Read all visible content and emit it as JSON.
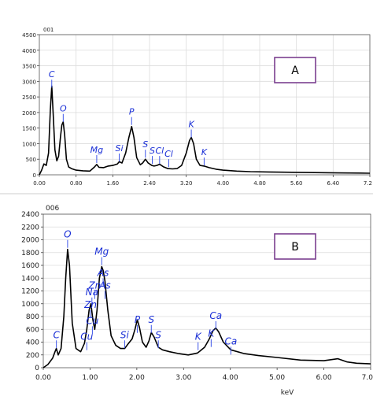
{
  "chart_data": [
    {
      "type": "line",
      "header": "001",
      "panel_label": "A",
      "xlabel": "",
      "ylabel": "",
      "xlim": [
        0,
        7.2
      ],
      "ylim": [
        0,
        4500
      ],
      "x_ticks": [
        "0.00",
        "0.80",
        "1.60",
        "2.40",
        "3.20",
        "4.00",
        "4.80",
        "5.60",
        "6.40",
        "7.2"
      ],
      "y_ticks": [
        "0",
        "500",
        "1000",
        "1500",
        "2000",
        "2500",
        "3000",
        "3500",
        "4000",
        "4500"
      ],
      "peak_labels": [
        {
          "label": "C",
          "x": 0.27,
          "y": 2750
        },
        {
          "label": "O",
          "x": 0.52,
          "y": 1650
        },
        {
          "label": "Mg",
          "x": 1.25,
          "y": 330
        },
        {
          "label": "Si",
          "x": 1.74,
          "y": 380
        },
        {
          "label": "P",
          "x": 2.01,
          "y": 1550
        },
        {
          "label": "S",
          "x": 2.31,
          "y": 500
        },
        {
          "label": "Cl",
          "x": 2.62,
          "y": 300
        },
        {
          "label": "S",
          "x": 2.46,
          "y": 300
        },
        {
          "label": "Cl",
          "x": 2.82,
          "y": 200
        },
        {
          "label": "K",
          "x": 3.31,
          "y": 1150
        },
        {
          "label": "K",
          "x": 3.59,
          "y": 250
        }
      ],
      "series": [
        {
          "x": [
            0.0,
            0.05,
            0.1,
            0.15,
            0.2,
            0.24,
            0.27,
            0.3,
            0.34,
            0.38,
            0.42,
            0.46,
            0.49,
            0.52,
            0.55,
            0.59,
            0.64,
            0.7,
            0.8,
            0.95,
            1.1,
            1.2,
            1.25,
            1.3,
            1.4,
            1.5,
            1.6,
            1.7,
            1.74,
            1.8,
            1.88,
            1.95,
            2.01,
            2.06,
            2.12,
            2.2,
            2.25,
            2.31,
            2.37,
            2.45,
            2.5,
            2.56,
            2.62,
            2.7,
            2.8,
            2.9,
            3.0,
            3.1,
            3.2,
            3.27,
            3.31,
            3.36,
            3.42,
            3.5,
            3.59,
            3.7,
            3.85,
            4.0,
            4.3,
            4.6,
            5.0,
            5.5,
            6.0,
            6.5,
            7.0,
            7.2
          ],
          "y": [
            0,
            150,
            350,
            300,
            700,
            2100,
            2850,
            2000,
            800,
            450,
            600,
            1200,
            1600,
            1700,
            1300,
            500,
            250,
            200,
            150,
            130,
            120,
            250,
            330,
            240,
            230,
            280,
            300,
            350,
            420,
            380,
            700,
            1200,
            1550,
            1200,
            550,
            320,
            380,
            500,
            380,
            300,
            280,
            300,
            340,
            260,
            200,
            190,
            200,
            300,
            700,
            1100,
            1200,
            1000,
            500,
            300,
            280,
            230,
            180,
            150,
            120,
            100,
            90,
            80,
            70,
            60,
            55,
            50
          ]
        }
      ]
    },
    {
      "type": "line",
      "header": "006",
      "panel_label": "B",
      "xlabel": "keV",
      "ylabel": "",
      "xlim": [
        0,
        7.0
      ],
      "ylim": [
        0,
        2400
      ],
      "x_ticks": [
        "0.00",
        "1.00",
        "2.00",
        "3.00",
        "4.00",
        "5.00",
        "6.00",
        "7.0"
      ],
      "y_ticks": [
        "0",
        "200",
        "400",
        "600",
        "800",
        "1000",
        "1200",
        "1400",
        "1600",
        "1800",
        "2000",
        "2200",
        "2400"
      ],
      "peak_labels": [
        {
          "label": "C",
          "x": 0.28,
          "y": 280
        },
        {
          "label": "O",
          "x": 0.52,
          "y": 1850
        },
        {
          "label": "Cu",
          "x": 0.93,
          "y": 250
        },
        {
          "label": "Cu",
          "x": 1.05,
          "y": 500
        },
        {
          "label": "Zn",
          "x": 1.01,
          "y": 750
        },
        {
          "label": "Na",
          "x": 1.04,
          "y": 950
        },
        {
          "label": "Zn",
          "x": 1.1,
          "y": 1050
        },
        {
          "label": "As",
          "x": 1.28,
          "y": 1250
        },
        {
          "label": "As",
          "x": 1.32,
          "y": 1050
        },
        {
          "label": "Mg",
          "x": 1.25,
          "y": 1580
        },
        {
          "label": "Si",
          "x": 1.74,
          "y": 280
        },
        {
          "label": "P",
          "x": 2.01,
          "y": 520
        },
        {
          "label": "S",
          "x": 2.31,
          "y": 520
        },
        {
          "label": "S",
          "x": 2.46,
          "y": 280
        },
        {
          "label": "K",
          "x": 3.31,
          "y": 250
        },
        {
          "label": "K",
          "x": 3.59,
          "y": 300
        },
        {
          "label": "Ca",
          "x": 3.69,
          "y": 580
        },
        {
          "label": "Ca",
          "x": 4.01,
          "y": 180
        }
      ],
      "series": [
        {
          "x": [
            0.0,
            0.1,
            0.2,
            0.25,
            0.28,
            0.32,
            0.38,
            0.44,
            0.48,
            0.52,
            0.56,
            0.62,
            0.7,
            0.8,
            0.88,
            0.93,
            0.98,
            1.02,
            1.06,
            1.1,
            1.15,
            1.2,
            1.25,
            1.28,
            1.32,
            1.38,
            1.45,
            1.55,
            1.65,
            1.74,
            1.8,
            1.9,
            1.96,
            2.01,
            2.06,
            2.12,
            2.2,
            2.26,
            2.31,
            2.37,
            2.46,
            2.55,
            2.7,
            2.9,
            3.1,
            3.3,
            3.45,
            3.55,
            3.63,
            3.69,
            3.75,
            3.85,
            4.01,
            4.3,
            4.6,
            5.0,
            5.5,
            6.0,
            6.3,
            6.5,
            6.7,
            7.0
          ],
          "y": [
            0,
            50,
            150,
            250,
            300,
            200,
            300,
            800,
            1400,
            1850,
            1600,
            700,
            300,
            250,
            380,
            600,
            900,
            1000,
            750,
            600,
            900,
            1400,
            1580,
            1520,
            1350,
            900,
            500,
            350,
            300,
            300,
            360,
            450,
            600,
            750,
            620,
            400,
            320,
            420,
            550,
            480,
            320,
            280,
            250,
            220,
            200,
            230,
            320,
            450,
            580,
            620,
            560,
            400,
            280,
            220,
            190,
            160,
            120,
            110,
            140,
            90,
            70,
            60
          ]
        }
      ]
    }
  ]
}
